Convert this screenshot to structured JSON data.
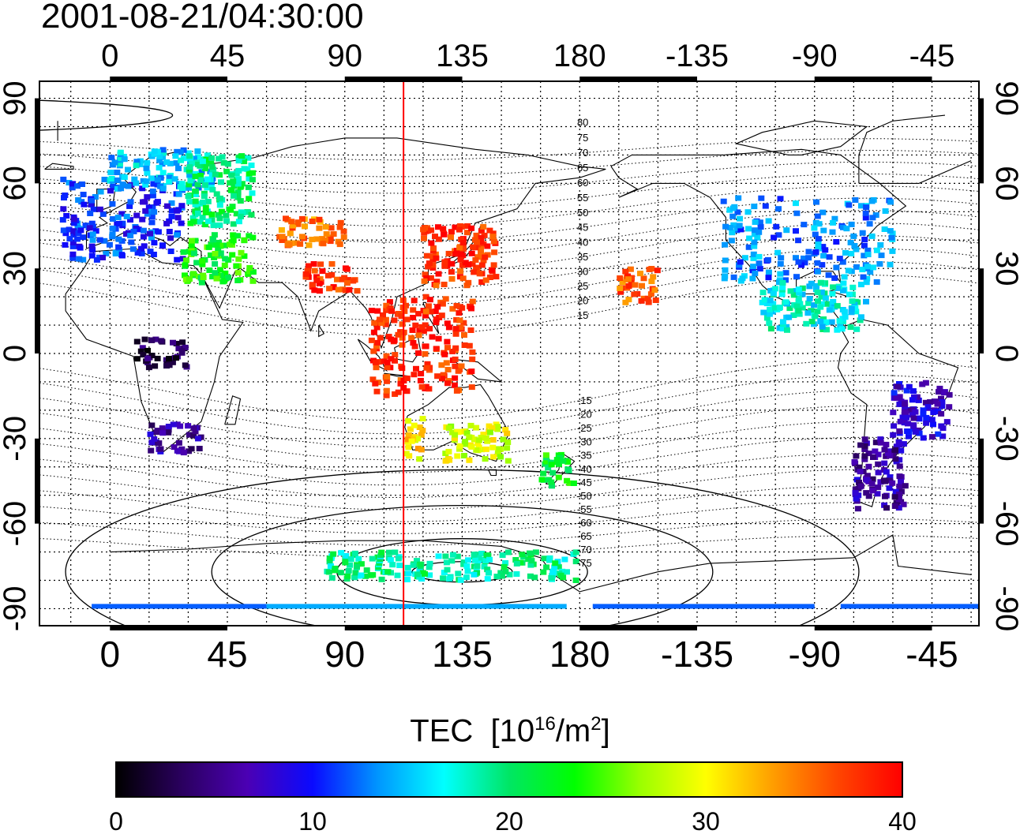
{
  "header": {
    "timestamp": "2001-08-21/04:30:00"
  },
  "map": {
    "projection": "equirectangular",
    "lon_range": [
      -27,
      333
    ],
    "lat_range": [
      -96,
      96
    ],
    "terminator_lon": 112.5,
    "lon_ticks": [
      0,
      45,
      90,
      135,
      180,
      -135,
      -90,
      -45
    ],
    "lat_ticks": [
      90,
      60,
      30,
      0,
      -30,
      -60,
      -90
    ],
    "grid_lon_step": 15,
    "grid_lat_step": 10,
    "contour_labels": [
      {
        "text": "80",
        "lat": 80
      },
      {
        "text": "75",
        "lat": 75
      },
      {
        "text": "70",
        "lat": 70
      },
      {
        "text": "65",
        "lat": 65
      },
      {
        "text": "60",
        "lat": 60
      },
      {
        "text": "55",
        "lat": 55
      },
      {
        "text": "50",
        "lat": 50
      },
      {
        "text": "45",
        "lat": 45
      },
      {
        "text": "40",
        "lat": 40
      },
      {
        "text": "35",
        "lat": 35
      },
      {
        "text": "30",
        "lat": 30
      },
      {
        "text": "25",
        "lat": 25
      },
      {
        "text": "20",
        "lat": 20
      },
      {
        "text": "15",
        "lat": 15
      },
      {
        "text": "-15",
        "lat": -15
      },
      {
        "text": "-20",
        "lat": -20
      },
      {
        "text": "-25",
        "lat": -25
      },
      {
        "text": "-30",
        "lat": -30
      },
      {
        "text": "-35",
        "lat": -35
      },
      {
        "text": "-40",
        "lat": -40
      },
      {
        "text": "-45",
        "lat": -45
      },
      {
        "text": "-50",
        "lat": -50
      },
      {
        "text": "-55",
        "lat": -55
      },
      {
        "text": "-60",
        "lat": -60
      },
      {
        "text": "-65",
        "lat": -65
      },
      {
        "text": "-70",
        "lat": -70
      },
      {
        "text": "-75",
        "lat": -75
      }
    ],
    "tec_regions": [
      {
        "name": "europe",
        "lon": [
          -18,
          28
        ],
        "lat": [
          33,
          62
        ],
        "tec": 11
      },
      {
        "name": "scandinavia",
        "lon": [
          0,
          40
        ],
        "lat": [
          58,
          72
        ],
        "tec": 15
      },
      {
        "name": "russia-west",
        "lon": [
          30,
          55
        ],
        "lat": [
          45,
          70
        ],
        "tec": 20
      },
      {
        "name": "middle-east",
        "lon": [
          28,
          55
        ],
        "lat": [
          25,
          42
        ],
        "tec": 23
      },
      {
        "name": "central-asia",
        "lon": [
          65,
          90
        ],
        "lat": [
          38,
          48
        ],
        "tec": 35
      },
      {
        "name": "india",
        "lon": [
          75,
          95
        ],
        "lat": [
          22,
          32
        ],
        "tec": 38
      },
      {
        "name": "east-asia",
        "lon": [
          120,
          148
        ],
        "lat": [
          24,
          45
        ],
        "tec": 38
      },
      {
        "name": "southeast-asia",
        "lon": [
          100,
          140
        ],
        "lat": [
          -15,
          20
        ],
        "tec": 38
      },
      {
        "name": "australia-west",
        "lon": [
          113,
          120
        ],
        "lat": [
          -38,
          -22
        ],
        "tec": 31
      },
      {
        "name": "australia-east",
        "lon": [
          128,
          153
        ],
        "lat": [
          -38,
          -25
        ],
        "tec": 29
      },
      {
        "name": "new-zealand",
        "lon": [
          165,
          178
        ],
        "lat": [
          -47,
          -35
        ],
        "tec": 22
      },
      {
        "name": "pacific-north",
        "lon": [
          195,
          210
        ],
        "lat": [
          18,
          30
        ],
        "tec": 36
      },
      {
        "name": "north-america",
        "lon": [
          -125,
          -60
        ],
        "lat": [
          25,
          55
        ],
        "tec": 13
      },
      {
        "name": "central-america",
        "lon": [
          -110,
          -70
        ],
        "lat": [
          8,
          25
        ],
        "tec": 17
      },
      {
        "name": "south-america-east",
        "lon": [
          -60,
          -38
        ],
        "lat": [
          -30,
          -10
        ],
        "tec": 8
      },
      {
        "name": "south-america-south",
        "lon": [
          -75,
          -55
        ],
        "lat": [
          -55,
          -30
        ],
        "tec": 6
      },
      {
        "name": "southern-africa",
        "lon": [
          15,
          35
        ],
        "lat": [
          -35,
          -25
        ],
        "tec": 6
      },
      {
        "name": "central-africa",
        "lon": [
          10,
          30
        ],
        "lat": [
          -5,
          5
        ],
        "tec": 3
      },
      {
        "name": "antarctic-south",
        "lon": [
          0,
          360
        ],
        "lat": [
          -92,
          -90
        ],
        "tec": 12
      },
      {
        "name": "antarctic-ring",
        "lon": [
          80,
          180
        ],
        "lat": [
          -80,
          -70
        ],
        "tec": 19
      }
    ]
  },
  "colorbar": {
    "title": "TEC",
    "unit_base": "[10",
    "unit_exp": "16",
    "unit_mid": "/m",
    "unit_exp2": "2",
    "unit_close": "]",
    "ticks": [
      "0",
      "10",
      "20",
      "30",
      "40"
    ],
    "range": [
      0,
      40
    ],
    "stops": [
      "#000000",
      "#2a005e",
      "#4b00b4",
      "#0a0aff",
      "#0096ff",
      "#00ffff",
      "#00e664",
      "#00ff00",
      "#9bff00",
      "#ffff00",
      "#ffa000",
      "#ff4600",
      "#ff0000"
    ]
  }
}
